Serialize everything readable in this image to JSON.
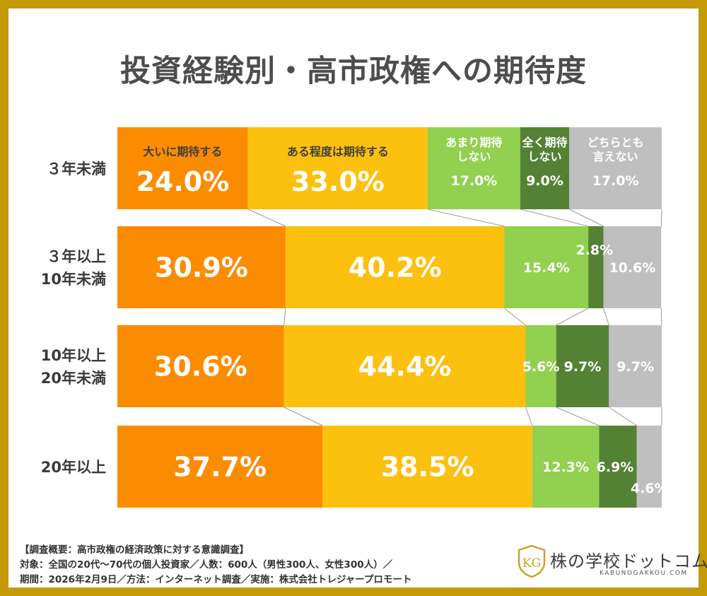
{
  "title": "投資経験別・高市政権への期待度",
  "chart_data": {
    "type": "bar",
    "orientation": "horizontal",
    "stacked": "percent",
    "categories": [
      "３年未満",
      "３年以上\n10年未満",
      "10年以上\n20年未満",
      "20年以上"
    ],
    "legend_labels": [
      "大いに期待する",
      "ある程度は期待する",
      "あまり期待\nしない",
      "全く期待\nしない",
      "どちらとも\n言えない"
    ],
    "series": [
      {
        "name": "大いに期待する",
        "color": "#fb8c00",
        "values": [
          24.0,
          30.9,
          30.6,
          37.7
        ]
      },
      {
        "name": "ある程度は期待する",
        "color": "#fcc00e",
        "values": [
          33.0,
          40.2,
          44.4,
          38.5
        ]
      },
      {
        "name": "あまり期待しない",
        "color": "#92d050",
        "values": [
          17.0,
          15.4,
          5.6,
          12.3
        ]
      },
      {
        "name": "全く期待しない",
        "color": "#548235",
        "values": [
          9.0,
          2.8,
          9.7,
          6.9
        ]
      },
      {
        "name": "どちらとも言えない",
        "color": "#bfbfbf",
        "values": [
          17.0,
          10.6,
          9.7,
          4.6
        ]
      }
    ],
    "xlim": [
      0,
      100
    ],
    "value_suffix": "%",
    "legend_placement": "inside-first-bar"
  },
  "footer": {
    "line1": "【調査概要：高市政権の経済政策に対する意識調査】",
    "line2": "対象：全国の20代〜70代の個人投資家／人数：600人（男性300人、女性300人）／",
    "line3": "期間：2026年2月9日／方法：インターネット調査／実施：株式会社トレジャープロモート"
  },
  "logo": {
    "text": "株の学校ドットコム",
    "subtext": "KABUNOGAKKOU.COM",
    "mark": "KG",
    "mark_color": "#c9a227"
  }
}
